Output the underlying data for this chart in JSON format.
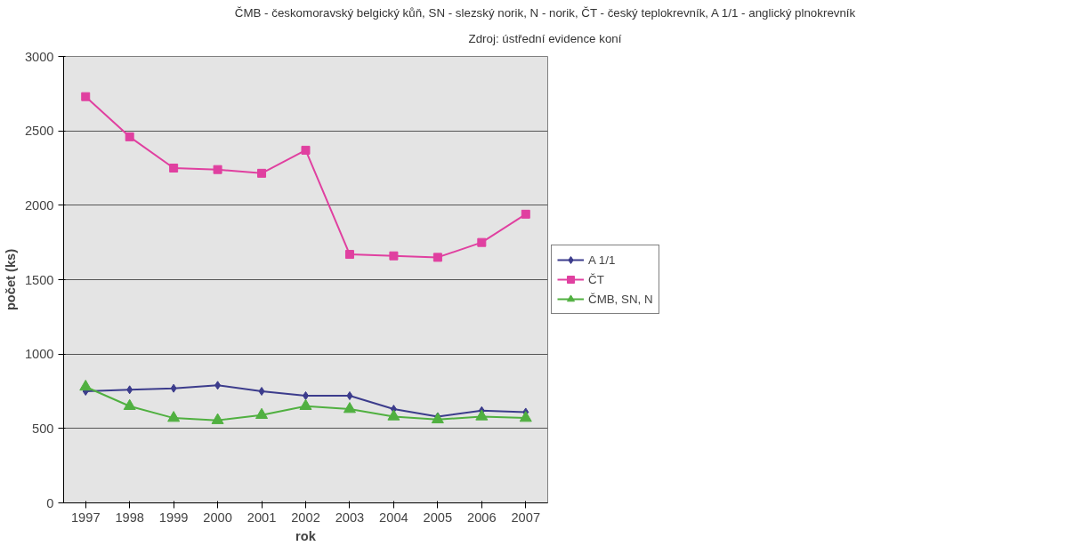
{
  "chart_data": {
    "type": "line",
    "title": "ČMB - českomoravský belgický kůň, SN - slezský norik, N - norik, ČT - český teplokrevník, A 1/1 - anglický plnokrevník",
    "subtitle": "Zdroj: ústřední evidence koní",
    "xlabel": "rok",
    "ylabel": "počet (ks)",
    "categories": [
      "1997",
      "1998",
      "1999",
      "2000",
      "2001",
      "2002",
      "2003",
      "2004",
      "2005",
      "2006",
      "2007"
    ],
    "series": [
      {
        "name": "A 1/1",
        "color": "#3c3c8c",
        "marker": "diamond",
        "values": [
          750,
          760,
          770,
          790,
          750,
          720,
          720,
          630,
          580,
          620,
          610
        ]
      },
      {
        "name": "ČT",
        "color": "#e040a0",
        "marker": "square",
        "values": [
          2730,
          2460,
          2250,
          2240,
          2215,
          2370,
          1670,
          1660,
          1650,
          1750,
          1940
        ]
      },
      {
        "name": "ČMB, SN, N",
        "color": "#50b040",
        "marker": "triangle",
        "values": [
          780,
          650,
          570,
          555,
          590,
          650,
          630,
          580,
          560,
          580,
          570
        ]
      }
    ],
    "ylim": [
      0,
      3000
    ],
    "yticks": [
      0,
      500,
      1000,
      1500,
      2000,
      2500,
      3000
    ],
    "grid": "y",
    "legend": "right",
    "line_style": "solid"
  }
}
